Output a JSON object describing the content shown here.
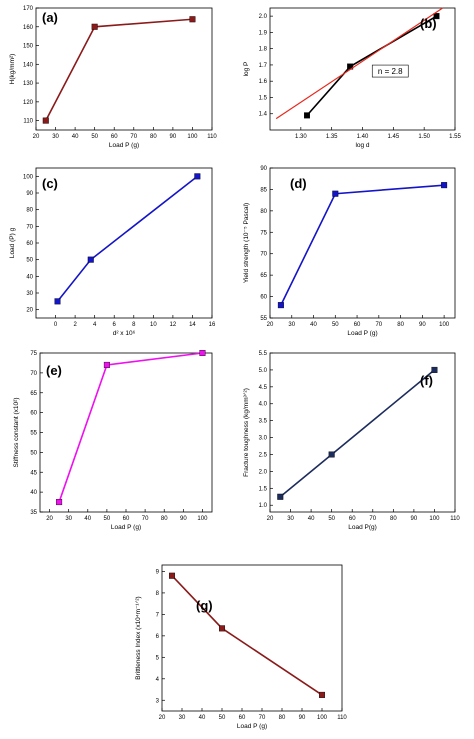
{
  "chart_data": [
    {
      "id": "a",
      "type": "line",
      "panel_label": "(a)",
      "title": "",
      "xlabel": "Load P (g)",
      "ylabel": "H(kg/mm²)",
      "xlim": [
        20,
        110
      ],
      "ylim": [
        105,
        170
      ],
      "xticks": [
        20,
        30,
        40,
        50,
        60,
        70,
        80,
        90,
        100,
        110
      ],
      "yticks": [
        110,
        120,
        130,
        140,
        150,
        160,
        170
      ],
      "grid": false,
      "series": [
        {
          "color": "#8b1a1a",
          "marker": "square",
          "x": [
            25,
            50,
            100
          ],
          "y": [
            110,
            160,
            164
          ]
        }
      ]
    },
    {
      "id": "b",
      "type": "line",
      "panel_label": "(b)",
      "title": "",
      "xlabel": "log d",
      "ylabel": "log P",
      "xlim": [
        1.25,
        1.55
      ],
      "ylim": [
        1.3,
        2.05
      ],
      "xticks": [
        1.3,
        1.35,
        1.4,
        1.45,
        1.5,
        1.55
      ],
      "xtick_labels": [
        "1.30",
        "1.35",
        "1.40",
        "1.45",
        "1.50",
        "1.55"
      ],
      "yticks": [
        1.4,
        1.5,
        1.6,
        1.7,
        1.8,
        1.9,
        2.0
      ],
      "ytick_labels": [
        "1.4",
        "1.5",
        "1.6",
        "1.7",
        "1.8",
        "1.9",
        "2.0"
      ],
      "grid": false,
      "series": [
        {
          "color": "#000000",
          "marker": "square",
          "x": [
            1.31,
            1.38,
            1.52
          ],
          "y": [
            1.39,
            1.69,
            2.0
          ]
        },
        {
          "color": "#e8281e",
          "marker": "none",
          "x": [
            1.26,
            1.53
          ],
          "y": [
            1.37,
            2.05
          ]
        }
      ],
      "annotations": [
        {
          "text": "n = 2.8",
          "x": 1.445,
          "y": 1.65
        }
      ]
    },
    {
      "id": "c",
      "type": "line",
      "panel_label": "(c)",
      "title": "",
      "xlabel": "d² x 10⁶",
      "ylabel": "Load (P) g",
      "xlim": [
        -2,
        16
      ],
      "ylim": [
        15,
        105
      ],
      "xticks": [
        0,
        2,
        4,
        6,
        8,
        10,
        12,
        14,
        16
      ],
      "yticks": [
        20,
        30,
        40,
        50,
        60,
        70,
        80,
        90,
        100
      ],
      "grid": false,
      "series": [
        {
          "color": "#1414c8",
          "marker": "square",
          "x": [
            0.2,
            3.6,
            14.5
          ],
          "y": [
            25,
            50,
            100
          ]
        }
      ]
    },
    {
      "id": "d",
      "type": "line",
      "panel_label": "(d)",
      "title": "",
      "xlabel": "Load P (g)",
      "ylabel": "Yield strength (10⁻⁵ Pascal)",
      "xlim": [
        20,
        105
      ],
      "ylim": [
        55,
        90
      ],
      "xticks": [
        20,
        30,
        40,
        50,
        60,
        70,
        80,
        90,
        100
      ],
      "yticks": [
        55,
        60,
        65,
        70,
        75,
        80,
        85,
        90
      ],
      "grid": false,
      "series": [
        {
          "color": "#1414c8",
          "marker": "square",
          "x": [
            25,
            50,
            100
          ],
          "y": [
            58,
            84,
            86
          ]
        }
      ]
    },
    {
      "id": "e",
      "type": "line",
      "panel_label": "(e)",
      "title": "",
      "xlabel": "Load P (g)",
      "ylabel": "Stiffness constant (x10²)",
      "xlim": [
        15,
        105
      ],
      "ylim": [
        35,
        75
      ],
      "xticks": [
        20,
        30,
        40,
        50,
        60,
        70,
        80,
        90,
        100
      ],
      "yticks": [
        35,
        40,
        45,
        50,
        55,
        60,
        65,
        70,
        75
      ],
      "grid": false,
      "series": [
        {
          "color": "#ee10ee",
          "marker": "square",
          "x": [
            25,
            50,
            100
          ],
          "y": [
            37.5,
            72,
            75
          ]
        }
      ]
    },
    {
      "id": "f",
      "type": "line",
      "panel_label": "(f)",
      "title": "",
      "xlabel": "Load P(g)",
      "ylabel": "Fracture toughness (kg/mm³ᐟ²)",
      "xlim": [
        20,
        110
      ],
      "ylim": [
        0.8,
        5.5
      ],
      "xticks": [
        20,
        30,
        40,
        50,
        60,
        70,
        80,
        90,
        100,
        110
      ],
      "yticks": [
        1.0,
        1.5,
        2.0,
        2.5,
        3.0,
        3.5,
        4.0,
        4.5,
        5.0,
        5.5
      ],
      "ytick_labels": [
        "1.0",
        "1.5",
        "2.0",
        "2.5",
        "3.0",
        "3.5",
        "4.0",
        "4.5",
        "5.0",
        "5.5"
      ],
      "grid": false,
      "series": [
        {
          "color": "#1c2c5c",
          "marker": "square",
          "x": [
            25,
            50,
            100
          ],
          "y": [
            1.25,
            2.5,
            5.0
          ]
        }
      ]
    },
    {
      "id": "g",
      "type": "line",
      "panel_label": "(g)",
      "title": "",
      "xlabel": "Load P (g)",
      "ylabel": "Brittleness Index (x10⁴m⁻¹ᐟ²)",
      "xlim": [
        20,
        110
      ],
      "ylim": [
        2.5,
        9.3
      ],
      "xticks": [
        20,
        30,
        40,
        50,
        60,
        70,
        80,
        90,
        100,
        110
      ],
      "yticks": [
        3,
        4,
        5,
        6,
        7,
        8,
        9
      ],
      "grid": false,
      "series": [
        {
          "color": "#8b1a1a",
          "marker": "square",
          "x": [
            25,
            50,
            100
          ],
          "y": [
            8.8,
            6.35,
            3.25
          ]
        }
      ]
    }
  ]
}
